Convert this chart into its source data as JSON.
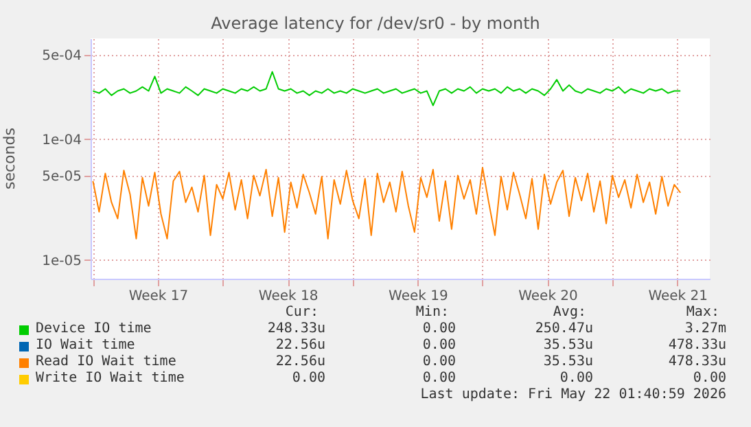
{
  "chart_data": {
    "type": "line",
    "title": "Average latency for /dev/sr0 - by month",
    "ylabel": "seconds",
    "log": true,
    "grid": true,
    "legend": "bottom",
    "x": [
      "2026-04-20T00:00",
      "2026-04-20T08:00",
      "2026-04-20T16:00",
      "2026-04-21T00:00",
      "2026-04-21T08:00",
      "2026-04-21T16:00",
      "2026-04-22T00:00",
      "2026-04-22T08:00",
      "2026-04-22T16:00",
      "2026-04-23T00:00",
      "2026-04-23T08:00",
      "2026-04-23T16:00",
      "2026-04-24T00:00",
      "2026-04-24T08:00",
      "2026-04-24T16:00",
      "2026-04-25T00:00",
      "2026-04-25T08:00",
      "2026-04-25T16:00",
      "2026-04-26T00:00",
      "2026-04-26T08:00",
      "2026-04-26T16:00",
      "2026-04-27T00:00",
      "2026-04-27T08:00",
      "2026-04-27T16:00",
      "2026-04-28T00:00",
      "2026-04-28T08:00",
      "2026-04-28T16:00",
      "2026-04-29T00:00",
      "2026-04-29T08:00",
      "2026-04-29T16:00",
      "2026-04-30T00:00",
      "2026-04-30T08:00",
      "2026-04-30T16:00",
      "2026-05-01T00:00",
      "2026-05-01T08:00",
      "2026-05-01T16:00",
      "2026-05-02T00:00",
      "2026-05-02T08:00",
      "2026-05-02T16:00",
      "2026-05-03T00:00",
      "2026-05-03T08:00",
      "2026-05-03T16:00",
      "2026-05-04T00:00",
      "2026-05-04T08:00",
      "2026-05-04T16:00",
      "2026-05-05T00:00",
      "2026-05-05T08:00",
      "2026-05-05T16:00",
      "2026-05-06T00:00",
      "2026-05-06T08:00",
      "2026-05-06T16:00",
      "2026-05-07T00:00",
      "2026-05-07T08:00",
      "2026-05-07T16:00",
      "2026-05-08T00:00",
      "2026-05-08T08:00",
      "2026-05-08T16:00",
      "2026-05-09T00:00",
      "2026-05-09T08:00",
      "2026-05-09T16:00",
      "2026-05-10T00:00",
      "2026-05-10T08:00",
      "2026-05-10T16:00",
      "2026-05-11T00:00",
      "2026-05-11T08:00",
      "2026-05-11T16:00",
      "2026-05-12T00:00",
      "2026-05-12T08:00",
      "2026-05-12T16:00",
      "2026-05-13T00:00",
      "2026-05-13T08:00",
      "2026-05-13T16:00",
      "2026-05-14T00:00",
      "2026-05-14T08:00",
      "2026-05-14T16:00",
      "2026-05-15T00:00",
      "2026-05-15T08:00",
      "2026-05-15T16:00",
      "2026-05-16T00:00",
      "2026-05-16T08:00",
      "2026-05-16T16:00",
      "2026-05-17T00:00",
      "2026-05-17T08:00",
      "2026-05-17T16:00",
      "2026-05-18T00:00",
      "2026-05-18T08:00",
      "2026-05-18T16:00",
      "2026-05-19T00:00",
      "2026-05-19T08:00",
      "2026-05-19T16:00",
      "2026-05-20T00:00",
      "2026-05-20T08:00",
      "2026-05-20T16:00",
      "2026-05-21T00:00",
      "2026-05-21T08:00",
      "2026-05-21T16:00"
    ],
    "xlim": [
      "2026-04-19T21:00",
      "2026-05-23T06:00"
    ],
    "xticks": [
      {
        "value": "2026-04-20",
        "label": null
      },
      {
        "value": "2026-04-23T12:00",
        "label": "Week 17"
      },
      {
        "value": "2026-04-27",
        "label": null
      },
      {
        "value": "2026-04-30T12:00",
        "label": "Week 18"
      },
      {
        "value": "2026-05-04",
        "label": null
      },
      {
        "value": "2026-05-07T12:00",
        "label": "Week 19"
      },
      {
        "value": "2026-05-11",
        "label": null
      },
      {
        "value": "2026-05-14T12:00",
        "label": "Week 20"
      },
      {
        "value": "2026-05-18",
        "label": null
      },
      {
        "value": "2026-05-21T12:00",
        "label": "Week 21"
      }
    ],
    "ylim": [
      7e-06,
      0.00068
    ],
    "yticks": [
      {
        "value": 1e-05,
        "label": "1e-05"
      },
      {
        "value": 5e-05,
        "label": "5e-05"
      },
      {
        "value": 0.0001,
        "label": "1e-04"
      },
      {
        "value": 0.0005,
        "label": "5e-04"
      }
    ],
    "series": [
      {
        "name": "Device IO time",
        "color": "#00cc00",
        "values": [
          0.00025,
          0.00024,
          0.00026,
          0.00023,
          0.00025,
          0.00026,
          0.00024,
          0.00025,
          0.00027,
          0.00025,
          0.00033,
          0.00024,
          0.00026,
          0.00025,
          0.00024,
          0.00027,
          0.00025,
          0.00023,
          0.00026,
          0.00025,
          0.00024,
          0.00026,
          0.00025,
          0.00024,
          0.00026,
          0.00025,
          0.00027,
          0.00025,
          0.00026,
          0.00036,
          0.00026,
          0.00025,
          0.00026,
          0.00024,
          0.00025,
          0.00023,
          0.00025,
          0.00024,
          0.00026,
          0.00024,
          0.00025,
          0.00024,
          0.00026,
          0.00025,
          0.00024,
          0.00025,
          0.00026,
          0.00024,
          0.00025,
          0.00026,
          0.00024,
          0.00025,
          0.00026,
          0.00024,
          0.00025,
          0.00019,
          0.00025,
          0.00026,
          0.00024,
          0.00026,
          0.00025,
          0.00027,
          0.00024,
          0.00026,
          0.00025,
          0.00026,
          0.00024,
          0.00027,
          0.00025,
          0.00026,
          0.00024,
          0.00026,
          0.00025,
          0.00023,
          0.00026,
          0.00031,
          0.00025,
          0.00028,
          0.00025,
          0.00024,
          0.00026,
          0.00025,
          0.00024,
          0.00026,
          0.00025,
          0.00027,
          0.00024,
          0.00026,
          0.00025,
          0.00024,
          0.00026,
          0.00025,
          0.00026,
          0.00024,
          0.00025,
          0.00025
        ]
      },
      {
        "name": "IO Wait time",
        "color": "#0066b3",
        "values": [
          null,
          null,
          null,
          null,
          null,
          null,
          null,
          null,
          null,
          null,
          null,
          null,
          null,
          null,
          null,
          null,
          null,
          null,
          null,
          null,
          null,
          null,
          null,
          null,
          null,
          null,
          null,
          null,
          null,
          null,
          null,
          null,
          null,
          null,
          null,
          null,
          null,
          null,
          null,
          null,
          null,
          null,
          null,
          null,
          null,
          null,
          null,
          null,
          null,
          null,
          null,
          null,
          null,
          null,
          null,
          null,
          null,
          null,
          null,
          null,
          null,
          null,
          null,
          null,
          null,
          null,
          null,
          null,
          null,
          null,
          null,
          null,
          null,
          null,
          null,
          null,
          null,
          null,
          null,
          null,
          null,
          null,
          null,
          null,
          null,
          null,
          null,
          null,
          null,
          null,
          null,
          null,
          null,
          null,
          null,
          null
        ]
      },
      {
        "name": "Read IO Wait time",
        "color": "#ff8000",
        "values": [
          4.5e-05,
          2.5e-05,
          5.2e-05,
          3e-05,
          2.2e-05,
          5.5e-05,
          3.5e-05,
          1.5e-05,
          4.8e-05,
          2.8e-05,
          5.3e-05,
          2.4e-05,
          1.5e-05,
          4.5e-05,
          5.4e-05,
          3e-05,
          4e-05,
          2.5e-05,
          5e-05,
          1.6e-05,
          4.2e-05,
          3.2e-05,
          5.3e-05,
          2.6e-05,
          4.6e-05,
          2.2e-05,
          5e-05,
          3.4e-05,
          5.6e-05,
          2.3e-05,
          4.8e-05,
          1.7e-05,
          4.4e-05,
          2.7e-05,
          5.1e-05,
          3.6e-05,
          2.4e-05,
          4.9e-05,
          1.5e-05,
          4.6e-05,
          2.9e-05,
          5.5e-05,
          3.1e-05,
          2.2e-05,
          4.7e-05,
          1.6e-05,
          5.2e-05,
          3e-05,
          4.4e-05,
          2.5e-05,
          5.4e-05,
          2.8e-05,
          1.7e-05,
          4.8e-05,
          3.3e-05,
          5.6e-05,
          2.1e-05,
          4.5e-05,
          1.8e-05,
          5e-05,
          3.2e-05,
          4.6e-05,
          2.4e-05,
          5.8e-05,
          3e-05,
          1.6e-05,
          4.9e-05,
          2.6e-05,
          5.3e-05,
          3.5e-05,
          2.2e-05,
          4.7e-05,
          1.8e-05,
          5.1e-05,
          2.9e-05,
          4.4e-05,
          5.5e-05,
          2.3e-05,
          4.8e-05,
          3.1e-05,
          5.2e-05,
          2.5e-05,
          4.5e-05,
          2e-05,
          5e-05,
          3.3e-05,
          4.6e-05,
          2.7e-05,
          5.1e-05,
          3e-05,
          4.4e-05,
          2.4e-05,
          4.9e-05,
          2.8e-05,
          4.2e-05,
          3.6e-05
        ]
      },
      {
        "name": "Write IO Wait time",
        "color": "#ffcc00",
        "values": [
          null,
          null,
          null,
          null,
          null,
          null,
          null,
          null,
          null,
          null,
          null,
          null,
          null,
          null,
          null,
          null,
          null,
          null,
          null,
          null,
          null,
          null,
          null,
          null,
          null,
          null,
          null,
          null,
          null,
          null,
          null,
          null,
          null,
          null,
          null,
          null,
          null,
          null,
          null,
          null,
          null,
          null,
          null,
          null,
          null,
          null,
          null,
          null,
          null,
          null,
          null,
          null,
          null,
          null,
          null,
          null,
          null,
          null,
          null,
          null,
          null,
          null,
          null,
          null,
          null,
          null,
          null,
          null,
          null,
          null,
          null,
          null,
          null,
          null,
          null,
          null,
          null,
          null,
          null,
          null,
          null,
          null,
          null,
          null,
          null,
          null,
          null,
          null,
          null,
          null,
          null,
          null,
          null,
          null,
          null,
          null
        ]
      }
    ],
    "annotations": [
      "Cur:",
      "Min:",
      "Avg:",
      "Max:",
      "248.33u",
      "0.00",
      "250.47u",
      "3.27m",
      "22.56u",
      "0.00",
      "35.53u",
      "478.33u",
      "22.56u",
      "0.00",
      "35.53u",
      "478.33u",
      "0.00",
      "0.00",
      "0.00",
      "0.00",
      "Last update: Fri May 22 01:40:59 2026"
    ]
  }
}
